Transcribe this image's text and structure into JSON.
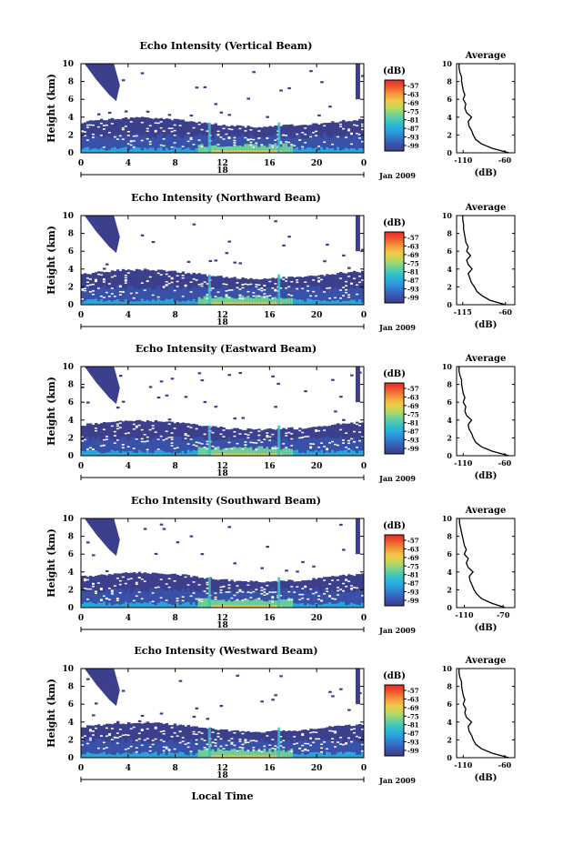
{
  "panels_meta": {
    "ylabel": "Height (km)",
    "cbar_unit": "(dB)",
    "avg_title": "Average",
    "avg_xlabel": "(dB)",
    "date_label": "Jan 2009",
    "day_label": "18",
    "xlabel": "Local Time"
  },
  "colors": {
    "scale": [
      "#3b3f8c",
      "#3a56b0",
      "#2f7fd0",
      "#2aa7df",
      "#34c2c5",
      "#6fd19a",
      "#b9d85c",
      "#f2c94a",
      "#f39a3a",
      "#ef5a2f",
      "#e52a2a"
    ]
  },
  "chart_data": [
    {
      "type": "heatmap",
      "title": "Echo Intensity (Vertical Beam)",
      "ylabel": "Height (km)",
      "xticks": [
        "0",
        "4",
        "8",
        "12",
        "16",
        "20",
        "0"
      ],
      "yticks": [
        "0",
        "2",
        "4",
        "6",
        "8",
        "10"
      ],
      "xlim": [
        0,
        24
      ],
      "ylim": [
        0,
        10
      ],
      "cbar_ticks": [
        "-57",
        "-63",
        "-69",
        "-75",
        "-81",
        "-87",
        "-93",
        "-99"
      ],
      "avg": {
        "xticks": [
          "-110",
          "-60"
        ],
        "yticks": [
          "0",
          "2",
          "4",
          "6",
          "8",
          "10"
        ],
        "profile_h": [
          0,
          0.5,
          1,
          1.5,
          2,
          2.5,
          3,
          3.5,
          4,
          4.5,
          5,
          5.5,
          6,
          6.5,
          7,
          7.5,
          8,
          8.5,
          9,
          9.5,
          10
        ],
        "profile_db": [
          -55,
          -75,
          -88,
          -95,
          -98,
          -100,
          -103,
          -104,
          -100,
          -106,
          -108,
          -107,
          -110,
          -108,
          -110,
          -111,
          -112,
          -112,
          -114,
          -115,
          -115
        ]
      }
    },
    {
      "type": "heatmap",
      "title": "Echo Intensity (Northward Beam)",
      "ylabel": "Height (km)",
      "xticks": [
        "0",
        "4",
        "8",
        "12",
        "16",
        "20",
        "0"
      ],
      "yticks": [
        "0",
        "2",
        "4",
        "6",
        "8",
        "10"
      ],
      "xlim": [
        0,
        24
      ],
      "ylim": [
        0,
        10
      ],
      "cbar_ticks": [
        "-57",
        "-63",
        "-69",
        "-75",
        "-81",
        "-87",
        "-93",
        "-99"
      ],
      "avg": {
        "xticks": [
          "-115",
          "-60"
        ],
        "yticks": [
          "0",
          "2",
          "4",
          "6",
          "8",
          "10"
        ],
        "profile_h": [
          0,
          0.5,
          1,
          1.5,
          2,
          2.5,
          3,
          3.5,
          4,
          4.5,
          5,
          5.5,
          6,
          6.5,
          7,
          7.5,
          8,
          8.5,
          9,
          9.5,
          10
        ],
        "profile_db": [
          -60,
          -80,
          -90,
          -97,
          -100,
          -104,
          -106,
          -108,
          -103,
          -108,
          -110,
          -105,
          -110,
          -108,
          -111,
          -112,
          -113,
          -114,
          -114,
          -115,
          -115
        ]
      }
    },
    {
      "type": "heatmap",
      "title": "Echo Intensity (Eastward Beam)",
      "ylabel": "Height (km)",
      "xticks": [
        "0",
        "4",
        "8",
        "12",
        "16",
        "20",
        "0"
      ],
      "yticks": [
        "0",
        "2",
        "4",
        "6",
        "8",
        "10"
      ],
      "xlim": [
        0,
        24
      ],
      "ylim": [
        0,
        10
      ],
      "cbar_ticks": [
        "-57",
        "-63",
        "-69",
        "-75",
        "-81",
        "-87",
        "-93",
        "-99"
      ],
      "avg": {
        "xticks": [
          "-110",
          "-60"
        ],
        "yticks": [
          "0",
          "2",
          "4",
          "6",
          "8",
          "10"
        ],
        "profile_h": [
          0,
          0.5,
          1,
          1.5,
          2,
          2.5,
          3,
          3.5,
          4,
          4.5,
          5,
          5.5,
          6,
          6.5,
          7,
          7.5,
          8,
          8.5,
          9,
          9.5,
          10
        ],
        "profile_db": [
          -55,
          -75,
          -88,
          -95,
          -98,
          -100,
          -103,
          -104,
          -100,
          -106,
          -108,
          -107,
          -110,
          -108,
          -110,
          -111,
          -112,
          -112,
          -114,
          -115,
          -115
        ]
      }
    },
    {
      "type": "heatmap",
      "title": "Echo Intensity (Southward Beam)",
      "ylabel": "Height (km)",
      "xticks": [
        "0",
        "4",
        "8",
        "12",
        "16",
        "20",
        "0"
      ],
      "yticks": [
        "0",
        "2",
        "4",
        "6",
        "8",
        "10"
      ],
      "xlim": [
        0,
        24
      ],
      "ylim": [
        0,
        10
      ],
      "cbar_ticks": [
        "-57",
        "-63",
        "-69",
        "-75",
        "-81",
        "-87",
        "-93",
        "-99"
      ],
      "avg": {
        "xticks": [
          "-110",
          "-70"
        ],
        "yticks": [
          "0",
          "2",
          "4",
          "6",
          "8",
          "10"
        ],
        "profile_h": [
          0,
          0.5,
          1,
          1.5,
          2,
          2.5,
          3,
          3.5,
          4,
          4.5,
          5,
          5.5,
          6,
          6.5,
          7,
          7.5,
          8,
          8.5,
          9,
          9.5,
          10
        ],
        "profile_db": [
          -68,
          -82,
          -92,
          -97,
          -100,
          -102,
          -104,
          -105,
          -101,
          -106,
          -108,
          -106,
          -110,
          -108,
          -110,
          -111,
          -112,
          -113,
          -114,
          -115,
          -115
        ]
      }
    },
    {
      "type": "heatmap",
      "title": "Echo Intensity (Westward Beam)",
      "ylabel": "Height (km)",
      "xticks": [
        "0",
        "4",
        "8",
        "12",
        "16",
        "20",
        "0"
      ],
      "yticks": [
        "0",
        "2",
        "4",
        "6",
        "8",
        "10"
      ],
      "xlim": [
        0,
        24
      ],
      "ylim": [
        0,
        10
      ],
      "cbar_ticks": [
        "-57",
        "-63",
        "-69",
        "-75",
        "-81",
        "-87",
        "-93",
        "-99"
      ],
      "avg": {
        "xticks": [
          "-110",
          "-60"
        ],
        "yticks": [
          "0",
          "2",
          "4",
          "6",
          "8",
          "10"
        ],
        "profile_h": [
          0,
          0.5,
          1,
          1.5,
          2,
          2.5,
          3,
          3.5,
          4,
          4.5,
          5,
          5.5,
          6,
          6.5,
          7,
          7.5,
          8,
          8.5,
          9,
          9.5,
          10
        ],
        "profile_db": [
          -55,
          -75,
          -88,
          -95,
          -98,
          -100,
          -103,
          -104,
          -100,
          -106,
          -108,
          -107,
          -110,
          -108,
          -110,
          -111,
          -112,
          -112,
          -114,
          -115,
          -115
        ]
      }
    }
  ]
}
